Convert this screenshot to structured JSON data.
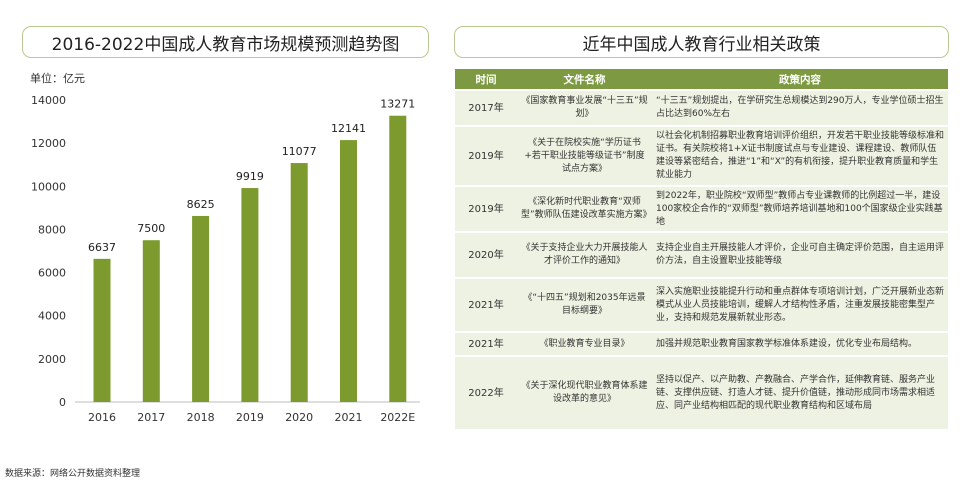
{
  "chart_title": "2016-2022中国成人教育市场规模预测趋势图",
  "table_title": "近年中国成人教育行业相关政策",
  "unit_label": "单位：亿元",
  "source": "数据来源：网络公开数据资料整理",
  "colors": {
    "bar": "#7d9a2e",
    "header": "#7d9a43",
    "row": "#eef2e2",
    "frame": "#b9c98f"
  },
  "chart_data": {
    "type": "bar",
    "title": "2016-2022中国成人教育市场规模预测趋势图",
    "ylabel": "单位：亿元",
    "categories": [
      "2016",
      "2017",
      "2018",
      "2019",
      "2020",
      "2021",
      "2022E"
    ],
    "values": [
      6637,
      7500,
      8625,
      9919,
      11077,
      12141,
      13271
    ],
    "ylim": [
      0,
      14000
    ],
    "yticks": [
      0,
      2000,
      4000,
      6000,
      8000,
      10000,
      12000,
      14000
    ],
    "grid": false,
    "legend": "none"
  },
  "table": {
    "headers": [
      "时间",
      "文件名称",
      "政策内容"
    ],
    "rows": [
      {
        "year": "2017年",
        "doc": "《国家教育事业发展“十三五”规划》",
        "content": "“十三五”规划提出，在学研究生总规模达到290万人，专业学位硕士招生占比达到60%左右"
      },
      {
        "year": "2019年",
        "doc": "《关于在院校实施“学历证书+若干职业技能等级证书”制度试点方案》",
        "content": "以社会化机制招募职业教育培训评价组织，开发若干职业技能等级标准和证书。有关院校将1+X证书制度试点与专业建设、课程建设、教师队伍建设等紧密结合，推进“1”和“X”的有机衔接，提升职业教育质量和学生就业能力"
      },
      {
        "year": "2019年",
        "doc": "《深化新时代职业教育“双师型”教师队伍建设改革实施方案》",
        "content": "到2022年，职业院校“双师型”教师占专业课教师的比例超过一半，建设100家校企合作的“双师型”教师培养培训基地和100个国家级企业实践基地"
      },
      {
        "year": "2020年",
        "doc": "《关于支持企业大力开展技能人才评价工作的通知》",
        "content": "支持企业自主开展技能人才评价，企业可自主确定评价范围，自主运用评价方法，自主设置职业技能等级"
      },
      {
        "year": "2021年",
        "doc": "《“十四五”规划和2035年远景目标纲要》",
        "content": "深入实施职业技能提升行动和重点群体专项培训计划，广泛开展新业态新模式从业人员技能培训，缓解人才结构性矛盾，注重发展技能密集型产业，支持和规范发展新就业形态。"
      },
      {
        "year": "2021年",
        "doc": "《职业教育专业目录》",
        "content": "加强并规范职业教育国家教学标准体系建设，优化专业布局结构。"
      },
      {
        "year": "2022年",
        "doc": "《关于深化现代职业教育体系建设改革的意见》",
        "content": "坚持以促产、以产助教、产教融合、产学合作，延伸教育链、服务产业链、支撑供应链、打造人才链、提升价值链，推动形成同市场需求相适应、同产业结构相匹配的现代职业教育结构和区域布局"
      }
    ]
  }
}
